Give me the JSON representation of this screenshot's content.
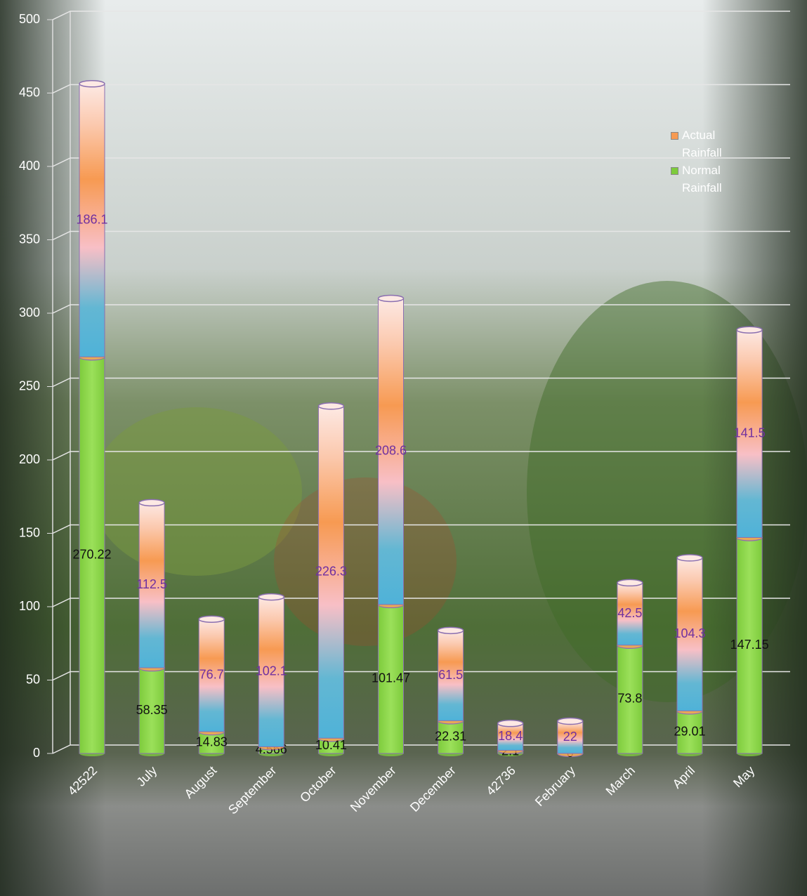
{
  "chart_data": {
    "type": "bar",
    "stacked": true,
    "categories": [
      "42522",
      "July",
      "August",
      "September",
      "October",
      "November",
      "December",
      "42736",
      "February",
      "March",
      "April",
      "May"
    ],
    "series": [
      {
        "name": "Normal Rainfall",
        "color": "#7dcb3c",
        "values": [
          270.22,
          58.35,
          14.83,
          4.566,
          10.41,
          101.47,
          22.31,
          2.1,
          0,
          73.8,
          29.01,
          147.15
        ]
      },
      {
        "name": "Actual Rainfall",
        "color": "#f79a52",
        "values": [
          186.1,
          112.5,
          76.7,
          102.1,
          226.3,
          208.6,
          61.5,
          18.4,
          22,
          42.5,
          104.3,
          141.5
        ]
      }
    ],
    "ylim": [
      0,
      500
    ],
    "yticks": [
      0,
      50,
      100,
      150,
      200,
      250,
      300,
      350,
      400,
      450,
      500
    ],
    "grid": true,
    "legend": "right"
  }
}
